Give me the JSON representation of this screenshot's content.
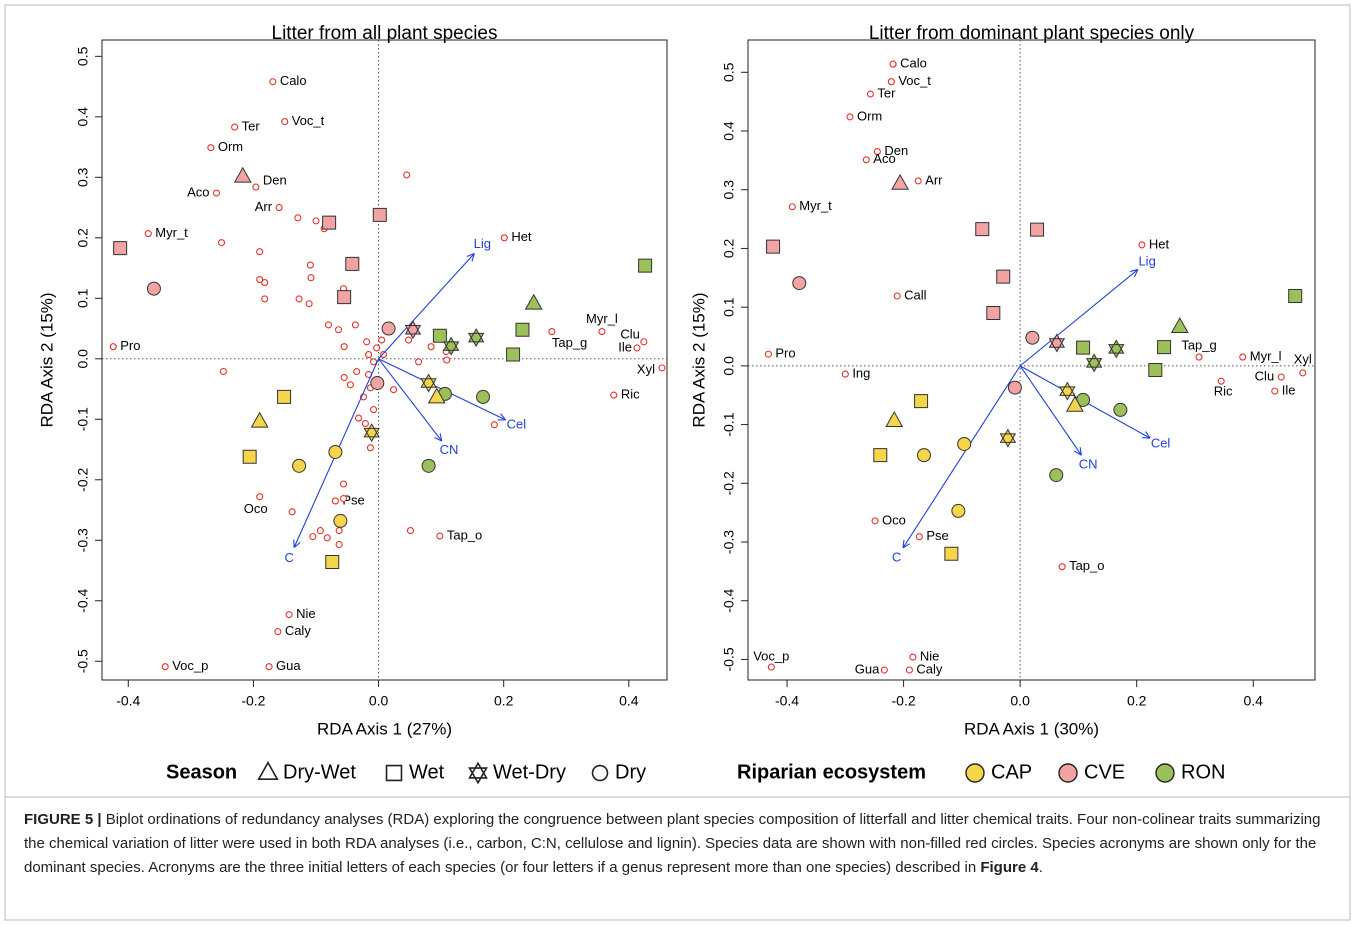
{
  "chart_data": [
    {
      "type": "biplot",
      "title": "Litter from all plant species",
      "xlabel": "RDA Axis 1 (27%)",
      "ylabel": "RDA Axis 2 (15%)",
      "xlim": [
        -0.442,
        0.461
      ],
      "ylim": [
        -0.531,
        0.527
      ],
      "xticks": [
        -0.4,
        -0.2,
        {
          "value": 0,
          "label": "0.0"
        },
        0.2,
        0.4
      ],
      "yticks": [
        -0.5,
        -0.4,
        -0.3,
        -0.2,
        -0.1,
        {
          "value": 0,
          "label": "0.0"
        },
        0.1,
        0.2,
        0.3,
        0.4,
        0.5
      ],
      "species": {
        "color": "#e8302a",
        "labels": [
          "Calo",
          "Ter",
          "Voc_t",
          "Orm",
          "Den",
          "Aco",
          "Arr",
          "Myr_t",
          "Het",
          "Pro",
          "Tap_g",
          "Myr_l",
          "Clu",
          "Ile",
          "Xyl",
          "Ric",
          "Oco",
          "Pse",
          "Tap_o",
          "Nie",
          "Caly",
          "Gua",
          "Voc_p",
          null,
          null,
          null,
          null,
          null,
          null,
          null,
          null,
          null,
          null,
          null,
          null,
          null,
          null,
          null,
          null,
          null,
          null,
          null,
          null,
          null,
          null,
          null,
          null,
          null,
          null,
          null,
          null,
          null,
          null,
          null,
          null,
          null,
          null,
          null,
          null,
          null,
          null,
          null,
          null,
          null,
          null,
          null,
          null,
          null,
          null,
          null,
          null,
          null,
          null
        ],
        "x": [
          -0.169,
          -0.23,
          -0.15,
          -0.268,
          -0.196,
          -0.259,
          -0.159,
          -0.368,
          0.201,
          -0.424,
          0.277,
          0.357,
          0.424,
          0.413,
          0.453,
          0.376,
          -0.19,
          -0.069,
          0.098,
          -0.143,
          -0.161,
          -0.175,
          -0.341,
          0.045,
          -0.129,
          -0.1,
          -0.087,
          -0.251,
          -0.19,
          -0.182,
          -0.19,
          -0.109,
          -0.108,
          -0.127,
          -0.182,
          -0.111,
          -0.056,
          -0.08,
          -0.064,
          -0.037,
          -0.055,
          -0.019,
          -0.248,
          -0.055,
          -0.035,
          -0.016,
          -0.013,
          -0.024,
          -0.045,
          -0.008,
          -0.021,
          -0.011,
          -0.013,
          -0.032,
          0.048,
          0.084,
          0.064,
          0.024,
          0.108,
          0.109,
          0.185,
          0.051,
          -0.138,
          -0.056,
          -0.056,
          -0.093,
          -0.082,
          -0.105,
          -0.063,
          -0.063,
          -0.079,
          0.008,
          -0.003,
          0.005,
          -0.008,
          -0.016
        ],
        "y": [
          0.458,
          0.383,
          0.392,
          0.349,
          0.284,
          0.274,
          0.25,
          0.207,
          0.2,
          0.02,
          0.045,
          0.045,
          0.028,
          0.018,
          -0.015,
          -0.06,
          -0.228,
          -0.235,
          -0.293,
          -0.423,
          -0.451,
          -0.509,
          -0.509,
          0.304,
          0.233,
          0.228,
          0.215,
          0.192,
          0.177,
          0.126,
          0.131,
          0.155,
          0.134,
          0.099,
          0.099,
          0.091,
          0.116,
          0.056,
          0.048,
          0.056,
          0.02,
          0.028,
          -0.021,
          -0.031,
          -0.021,
          -0.026,
          -0.048,
          -0.063,
          -0.043,
          -0.084,
          -0.107,
          -0.121,
          -0.147,
          -0.098,
          0.031,
          0.02,
          -0.005,
          -0.051,
          0.012,
          -0.002,
          -0.109,
          -0.284,
          -0.253,
          -0.207,
          -0.231,
          -0.284,
          -0.296,
          -0.294,
          -0.284,
          -0.307,
          -0.34,
          0.007,
          0.018,
          0.031,
          -0.005,
          0.007
        ]
      },
      "arrows": {
        "color": "#1f3fe0",
        "labels": [
          "Lig",
          "Cel",
          "CN",
          "C"
        ],
        "x": [
          0.153,
          0.203,
          0.101,
          -0.135
        ],
        "y": [
          0.174,
          -0.101,
          -0.136,
          -0.312
        ]
      },
      "sites": {
        "x": [
          -0.217,
          -0.413,
          -0.079,
          0.002,
          -0.042,
          -0.055,
          -0.359,
          0.016,
          -0.002,
          0.055,
          0.248,
          0.426,
          0.23,
          0.215,
          0.098,
          0.116,
          0.156,
          0.106,
          0.167,
          0.08,
          -0.19,
          0.093,
          -0.206,
          -0.151,
          -0.074,
          -0.127,
          -0.069,
          -0.061,
          0.08,
          -0.011
        ],
        "y": [
          0.301,
          0.183,
          0.225,
          0.238,
          0.157,
          0.102,
          0.116,
          0.05,
          -0.04,
          0.048,
          0.091,
          0.154,
          0.048,
          0.007,
          0.038,
          0.021,
          0.035,
          -0.058,
          -0.063,
          -0.177,
          -0.104,
          -0.064,
          -0.162,
          -0.063,
          -0.336,
          -0.177,
          -0.154,
          -0.268,
          -0.04,
          -0.122
        ],
        "season": [
          0,
          1,
          1,
          1,
          1,
          1,
          3,
          3,
          3,
          2,
          0,
          1,
          1,
          1,
          1,
          2,
          2,
          3,
          3,
          3,
          0,
          0,
          1,
          1,
          1,
          3,
          3,
          3,
          2,
          2
        ],
        "ecosystem": [
          1,
          1,
          1,
          1,
          1,
          1,
          1,
          1,
          1,
          1,
          2,
          2,
          2,
          2,
          2,
          2,
          2,
          2,
          2,
          2,
          0,
          0,
          0,
          0,
          0,
          0,
          0,
          0,
          0,
          0
        ]
      }
    },
    {
      "type": "biplot",
      "title": "Litter from dominant plant species only",
      "xlabel": "RDA Axis 1 (30%)",
      "ylabel": "RDA Axis 2 (15%)",
      "xlim": [
        -0.467,
        0.506
      ],
      "ylim": [
        -0.535,
        0.555
      ],
      "xticks": [
        -0.4,
        -0.2,
        {
          "value": 0,
          "label": "0.0"
        },
        0.2,
        0.4
      ],
      "yticks": [
        -0.5,
        -0.4,
        -0.3,
        -0.2,
        -0.1,
        {
          "value": 0,
          "label": "0.0"
        },
        0.1,
        0.2,
        0.3,
        0.4,
        0.5
      ],
      "species": {
        "color": "#e8302a",
        "labels": [
          "Calo",
          "Voc_t",
          "Ter",
          "Orm",
          "Den",
          "Aco",
          "Arr",
          "Myr_t",
          "Het",
          "Call",
          "Pro",
          "Ing",
          "Tap_g",
          "Myr_l",
          "Xyl",
          "Clu",
          "Ric",
          "Ile",
          "Oco",
          "Pse",
          "Tap_o",
          "Nie",
          "Caly",
          "Gua",
          "Voc_p"
        ],
        "x": [
          -0.218,
          -0.221,
          -0.257,
          -0.292,
          -0.245,
          -0.264,
          -0.175,
          -0.391,
          0.209,
          -0.211,
          -0.432,
          -0.3,
          0.307,
          0.382,
          0.485,
          0.448,
          0.345,
          0.437,
          -0.249,
          -0.173,
          0.072,
          -0.184,
          -0.19,
          -0.233,
          -0.427
        ],
        "y": [
          0.514,
          0.484,
          0.463,
          0.424,
          0.365,
          0.351,
          0.315,
          0.271,
          0.206,
          0.119,
          0.02,
          -0.014,
          0.015,
          0.015,
          -0.012,
          -0.019,
          -0.026,
          -0.043,
          -0.264,
          -0.291,
          -0.342,
          -0.496,
          -0.518,
          -0.518,
          -0.513
        ]
      },
      "arrows": {
        "color": "#1f3fe0",
        "labels": [
          "Lig",
          "Cel",
          "CN",
          "C"
        ],
        "x": [
          0.202,
          0.223,
          0.105,
          -0.201
        ],
        "y": [
          0.164,
          -0.123,
          -0.152,
          -0.31
        ]
      },
      "sites": {
        "x": [
          -0.206,
          -0.424,
          -0.065,
          0.029,
          -0.029,
          -0.046,
          -0.379,
          0.021,
          -0.009,
          0.063,
          0.274,
          0.472,
          0.247,
          0.232,
          0.108,
          0.127,
          0.165,
          0.108,
          0.172,
          0.062,
          -0.216,
          0.094,
          -0.24,
          -0.17,
          -0.118,
          -0.165,
          -0.096,
          -0.106,
          0.081,
          -0.021
        ],
        "y": [
          0.31,
          0.203,
          0.233,
          0.232,
          0.152,
          0.09,
          0.141,
          0.048,
          -0.037,
          0.039,
          0.066,
          0.119,
          0.032,
          -0.007,
          0.031,
          0.005,
          0.029,
          -0.058,
          -0.075,
          -0.186,
          -0.094,
          -0.068,
          -0.152,
          -0.06,
          -0.32,
          -0.152,
          -0.133,
          -0.247,
          -0.043,
          -0.123
        ],
        "season": [
          0,
          1,
          1,
          1,
          1,
          1,
          3,
          3,
          3,
          2,
          0,
          1,
          1,
          1,
          1,
          2,
          2,
          3,
          3,
          3,
          0,
          0,
          1,
          1,
          1,
          3,
          3,
          3,
          2,
          2
        ],
        "ecosystem": [
          1,
          1,
          1,
          1,
          1,
          1,
          1,
          1,
          1,
          1,
          2,
          2,
          2,
          2,
          2,
          2,
          2,
          2,
          2,
          2,
          0,
          0,
          0,
          0,
          0,
          0,
          0,
          0,
          0,
          0
        ]
      }
    }
  ],
  "legend_season": {
    "title": "Season",
    "items": [
      {
        "label": "Dry-Wet",
        "shape": "triangle"
      },
      {
        "label": "Wet",
        "shape": "square"
      },
      {
        "label": "Wet-Dry",
        "shape": "hexagram"
      },
      {
        "label": "Dry",
        "shape": "circle"
      }
    ]
  },
  "legend_ecosystem": {
    "title": "Riparian ecosystem",
    "items": [
      {
        "label": "CAP",
        "color": "#f5d64a"
      },
      {
        "label": "CVE",
        "color": "#f2a3a3"
      },
      {
        "label": "RON",
        "color": "#9cc05a"
      }
    ]
  },
  "caption": {
    "label": "FIGURE 5 |",
    "text": " Biplot ordinations of redundancy analyses (RDA) exploring the congruence between plant species composition of litterfall and litter chemical traits. Four non-colinear traits summarizing the chemical variation of litter were used in both RDA analyses (i.e., carbon, C:N, cellulose and lignin). Species data are shown with non-filled red circles. Species acronyms are shown only for the dominant species. Acronyms are the three initial letters of each species (or four letters if a genus represent more than one species) described in ",
    "ref": "Figure 4",
    "end": "."
  }
}
